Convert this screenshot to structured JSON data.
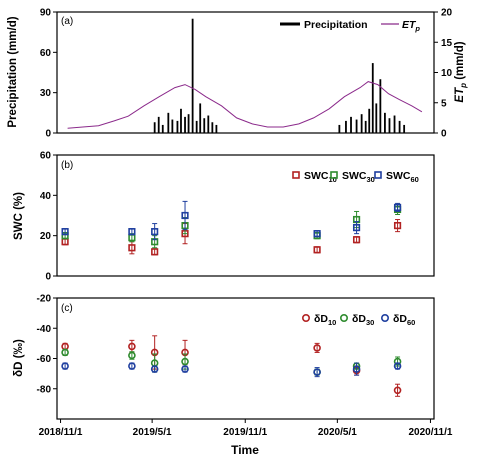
{
  "chart_data": [
    {
      "type": "bar+line",
      "panel_label": "(a)",
      "ylabel_left": "Precipitation (mm/d)",
      "ylabel_right": "ET p (mm/d)",
      "ylim_left": [
        0,
        90
      ],
      "ylim_right": [
        0,
        20
      ],
      "yticks_left": [
        0,
        30,
        60,
        90
      ],
      "yticks_right": [
        0,
        5,
        10,
        15,
        20
      ],
      "legend": {
        "precip": "Precipitation",
        "et": "ET",
        "et_sub": "p",
        "placement": "top-right"
      },
      "colors": {
        "precip": "#000000",
        "et": "#8b2a8b"
      },
      "series": [
        {
          "name": "Precipitation",
          "kind": "bar",
          "x": [
            "2019-05-06",
            "2019-05-14",
            "2019-05-22",
            "2019-06-02",
            "2019-06-10",
            "2019-06-20",
            "2019-06-27",
            "2019-07-05",
            "2019-07-12",
            "2019-07-20",
            "2019-07-28",
            "2019-08-04",
            "2019-08-12",
            "2019-08-20",
            "2019-08-28",
            "2019-09-05",
            "2020-05-05",
            "2020-05-18",
            "2020-05-28",
            "2020-06-08",
            "2020-06-18",
            "2020-06-26",
            "2020-07-03",
            "2020-07-10",
            "2020-07-17",
            "2020-07-25",
            "2020-08-03",
            "2020-08-12",
            "2020-08-22",
            "2020-09-01",
            "2020-09-10"
          ],
          "values": [
            8,
            12,
            6,
            15,
            10,
            9,
            18,
            12,
            14,
            85,
            9,
            22,
            11,
            13,
            8,
            6,
            6,
            9,
            12,
            10,
            14,
            9,
            18,
            52,
            22,
            40,
            15,
            11,
            13,
            9,
            6
          ]
        },
        {
          "name": "ET p",
          "kind": "line",
          "x": [
            "2018-11-15",
            "2018-12-15",
            "2019-01-15",
            "2019-02-15",
            "2019-03-15",
            "2019-04-15",
            "2019-05-15",
            "2019-06-15",
            "2019-07-05",
            "2019-07-25",
            "2019-08-15",
            "2019-09-15",
            "2019-10-15",
            "2019-11-15",
            "2019-12-15",
            "2020-01-15",
            "2020-02-15",
            "2020-03-15",
            "2020-04-15",
            "2020-05-15",
            "2020-06-15",
            "2020-07-01",
            "2020-07-20",
            "2020-08-10",
            "2020-09-01",
            "2020-09-25",
            "2020-10-15"
          ],
          "values": [
            0.8,
            1.0,
            1.2,
            2.0,
            2.8,
            4.5,
            6.0,
            7.5,
            8.0,
            7.2,
            6.0,
            4.5,
            2.5,
            1.5,
            1.0,
            1.0,
            1.5,
            2.5,
            4.0,
            6.0,
            7.5,
            8.5,
            8.0,
            6.5,
            5.5,
            4.5,
            3.5
          ]
        }
      ]
    },
    {
      "type": "scatter",
      "panel_label": "(b)",
      "ylabel": "SWC (%)",
      "ylim": [
        0,
        60
      ],
      "yticks": [
        0,
        20,
        40,
        60
      ],
      "legend_placement": "top-right",
      "series": [
        {
          "name": "SWC",
          "sub": "10",
          "color": "#b22222",
          "x": [
            "2018-11-10",
            "2019-03-22",
            "2019-05-06",
            "2019-07-05",
            "2020-03-22",
            "2020-06-08",
            "2020-08-28"
          ],
          "values": [
            17,
            14,
            12,
            21,
            13,
            18,
            25
          ],
          "err": [
            1.5,
            3,
            1.5,
            5,
            1.5,
            1.5,
            3
          ]
        },
        {
          "name": "SWC",
          "sub": "30",
          "color": "#2e8b2e",
          "x": [
            "2018-11-10",
            "2019-03-22",
            "2019-05-06",
            "2019-07-05",
            "2020-03-22",
            "2020-06-08",
            "2020-08-28"
          ],
          "values": [
            20,
            19,
            17,
            25,
            20,
            28,
            33
          ],
          "err": [
            1.5,
            2,
            3,
            4,
            1.5,
            4,
            2.5
          ]
        },
        {
          "name": "SWC",
          "sub": "60",
          "color": "#1f3f9f",
          "x": [
            "2018-11-10",
            "2019-03-22",
            "2019-05-06",
            "2019-07-05",
            "2020-03-22",
            "2020-06-08",
            "2020-08-28"
          ],
          "values": [
            22,
            22,
            22,
            30,
            21,
            24,
            34
          ],
          "err": [
            1.5,
            1.5,
            4,
            7,
            1.5,
            3,
            2
          ]
        }
      ]
    },
    {
      "type": "scatter",
      "panel_label": "(c)",
      "ylabel": "δD (‰)",
      "ylim": [
        -100,
        -20
      ],
      "yticks": [
        -80,
        -60,
        -40,
        -20
      ],
      "xlabel": "Time",
      "xticks": [
        "2018/11/1",
        "2019/5/1",
        "2019/11/1",
        "2020/5/1",
        "2020/11/1"
      ],
      "legend_placement": "top-right",
      "series": [
        {
          "name": "δD",
          "sub": "10",
          "color": "#b22222",
          "x": [
            "2018-11-10",
            "2019-03-22",
            "2019-05-06",
            "2019-07-05",
            "2020-03-22",
            "2020-06-08",
            "2020-08-28"
          ],
          "values": [
            -52,
            -52,
            -56,
            -56,
            -53,
            -68,
            -81
          ],
          "err": [
            2,
            4,
            11,
            8,
            3,
            3,
            4
          ]
        },
        {
          "name": "δD",
          "sub": "30",
          "color": "#2e8b2e",
          "x": [
            "2018-11-10",
            "2019-03-22",
            "2019-05-06",
            "2019-07-05",
            "2020-03-22",
            "2020-06-08",
            "2020-08-28"
          ],
          "values": [
            -56,
            -58,
            -63,
            -62,
            -69,
            -65,
            -62
          ],
          "err": [
            2,
            2.5,
            6,
            5,
            2,
            2,
            3
          ]
        },
        {
          "name": "δD",
          "sub": "60",
          "color": "#1f3f9f",
          "x": [
            "2018-11-10",
            "2019-03-22",
            "2019-05-06",
            "2019-07-05",
            "2020-03-22",
            "2020-06-08",
            "2020-08-28"
          ],
          "values": [
            -65,
            -65,
            -67,
            -67,
            -69,
            -67,
            -65
          ],
          "err": [
            2,
            2,
            2,
            2,
            3,
            4,
            2
          ]
        }
      ]
    }
  ]
}
